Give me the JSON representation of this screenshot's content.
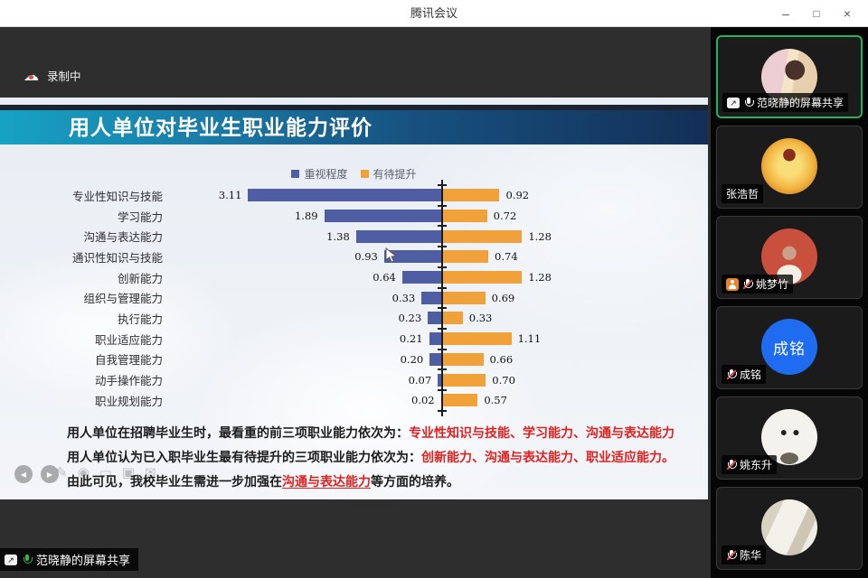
{
  "window": {
    "title": "腾讯会议",
    "controls": {
      "minimize": "–",
      "maximize": "□",
      "close": "×"
    }
  },
  "recording": {
    "label": "录制中"
  },
  "slide": {
    "banner_title": "用人单位对毕业生职业能力评价",
    "chart_data": {
      "type": "bar",
      "orientation": "horizontal-diverging",
      "categories": [
        "专业性知识与技能",
        "学习能力",
        "沟通与表达能力",
        "通识性知识与技能",
        "创新能力",
        "组织与管理能力",
        "执行能力",
        "职业适应能力",
        "自我管理能力",
        "动手操作能力",
        "职业规划能力"
      ],
      "series": [
        {
          "name": "重视程度",
          "color": "#4f5da2",
          "side": "left",
          "values": [
            3.11,
            1.89,
            1.38,
            0.93,
            0.64,
            0.33,
            0.23,
            0.21,
            0.2,
            0.07,
            0.02
          ]
        },
        {
          "name": "有待提升",
          "color": "#f0a139",
          "side": "right",
          "values": [
            0.92,
            0.72,
            1.28,
            0.74,
            1.28,
            0.69,
            0.33,
            1.11,
            0.66,
            0.7,
            0.57
          ]
        }
      ],
      "legend_position": "top-center",
      "axis": "center-vertical-zero",
      "grid": false
    },
    "summary": [
      {
        "prefix": "用人单位在招聘毕业生时，最看重的前三项职业能力依次为：",
        "highlight": "专业性知识与技能、学习能力、沟通与表达能力",
        "suffix": ""
      },
      {
        "prefix": "用人单位认为已入职毕业生最有待提升的三项职业能力依次为：",
        "highlight": "创新能力、沟通与表达能力、职业适应能力。",
        "suffix": ""
      },
      {
        "prefix": "由此可见，我校毕业生需进一步加强在",
        "highlight": "沟通与表达能力",
        "suffix": "等方面的培养。"
      }
    ]
  },
  "share_badge": {
    "label": "范晓静的屏幕共享"
  },
  "participants": [
    {
      "name": "范晓静的屏幕共享",
      "active_speaker": true,
      "screen_sharing": true,
      "mic": "on",
      "host_badge": false,
      "avatar_type": "photo"
    },
    {
      "name": "张浩哲",
      "active_speaker": false,
      "screen_sharing": false,
      "mic": "none",
      "host_badge": false,
      "avatar_type": "photo"
    },
    {
      "name": "姚梦竹",
      "active_speaker": false,
      "screen_sharing": false,
      "mic": "muted",
      "host_badge": true,
      "avatar_type": "photo"
    },
    {
      "name": "成铭",
      "active_speaker": false,
      "screen_sharing": false,
      "mic": "muted",
      "host_badge": false,
      "avatar_type": "initials",
      "avatar_text": "成铭",
      "avatar_color": "#1f6cf0"
    },
    {
      "name": "姚东升",
      "active_speaker": false,
      "screen_sharing": false,
      "mic": "muted",
      "host_badge": false,
      "avatar_type": "cartoon"
    },
    {
      "name": "陈华",
      "active_speaker": false,
      "screen_sharing": false,
      "mic": "muted",
      "host_badge": false,
      "avatar_type": "photo"
    }
  ],
  "icons": {
    "cloud_record": "☁",
    "prev": "◀",
    "next": "▶",
    "tools": [
      "✎",
      "◉",
      "▭",
      "▣",
      "✉"
    ]
  }
}
